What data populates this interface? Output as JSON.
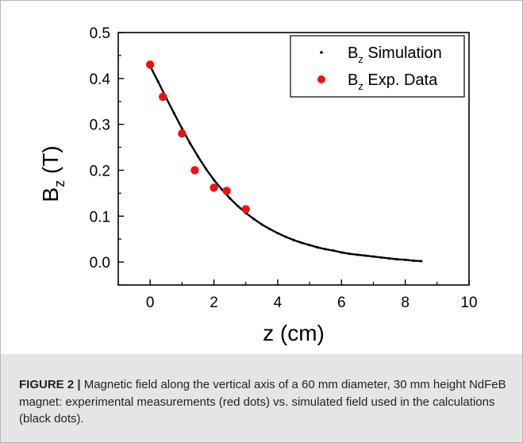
{
  "chart_data": {
    "type": "scatter",
    "xlabel": "z (cm)",
    "ylabel_main": "B",
    "ylabel_sub": "z",
    "ylabel_unit": " (T)",
    "xlim": [
      -1,
      10
    ],
    "ylim": [
      -0.05,
      0.5
    ],
    "xticks": [
      0,
      2,
      4,
      6,
      8,
      10
    ],
    "yticks": [
      0.0,
      0.1,
      0.2,
      0.3,
      0.4,
      0.5
    ],
    "xtick_labels": [
      "0",
      "2",
      "4",
      "6",
      "8",
      "10"
    ],
    "ytick_labels": [
      "0.0",
      "0.1",
      "0.2",
      "0.3",
      "0.4",
      "0.5"
    ],
    "legend_position": "top-right",
    "series": [
      {
        "name_main": "B",
        "name_sub": "z",
        "name_rest": " Simulation",
        "marker": "small-dot",
        "color": "#000000",
        "x": [
          0,
          0.25,
          0.5,
          0.75,
          1.0,
          1.25,
          1.5,
          1.75,
          2.0,
          2.25,
          2.5,
          2.75,
          3.0,
          3.25,
          3.5,
          3.75,
          4.0,
          4.25,
          4.5,
          4.75,
          5.0,
          5.25,
          5.5,
          5.75,
          6.0,
          6.25,
          6.5,
          6.75,
          7.0,
          7.25,
          7.5,
          7.75,
          8.0,
          8.25,
          8.5
        ],
        "y": [
          0.427,
          0.393,
          0.358,
          0.324,
          0.291,
          0.259,
          0.23,
          0.203,
          0.179,
          0.158,
          0.139,
          0.122,
          0.107,
          0.094,
          0.082,
          0.072,
          0.063,
          0.055,
          0.048,
          0.042,
          0.037,
          0.032,
          0.028,
          0.025,
          0.021,
          0.018,
          0.016,
          0.014,
          0.012,
          0.01,
          0.008,
          0.006,
          0.005,
          0.003,
          0.002
        ]
      },
      {
        "name_main": "B",
        "name_sub": "z",
        "name_rest": " Exp. Data",
        "marker": "circle",
        "color": "#ee1111",
        "x": [
          0.0,
          0.4,
          1.0,
          1.4,
          2.0,
          2.4,
          3.0
        ],
        "y": [
          0.43,
          0.36,
          0.28,
          0.2,
          0.162,
          0.155,
          0.115
        ]
      }
    ]
  },
  "caption": {
    "label": "FIGURE 2 |",
    "text": " Magnetic field along the vertical axis of a 60 mm diameter, 30 mm height NdFeB magnet: experimental measurements (red dots) vs. simulated field used in the calculations (black dots)."
  }
}
